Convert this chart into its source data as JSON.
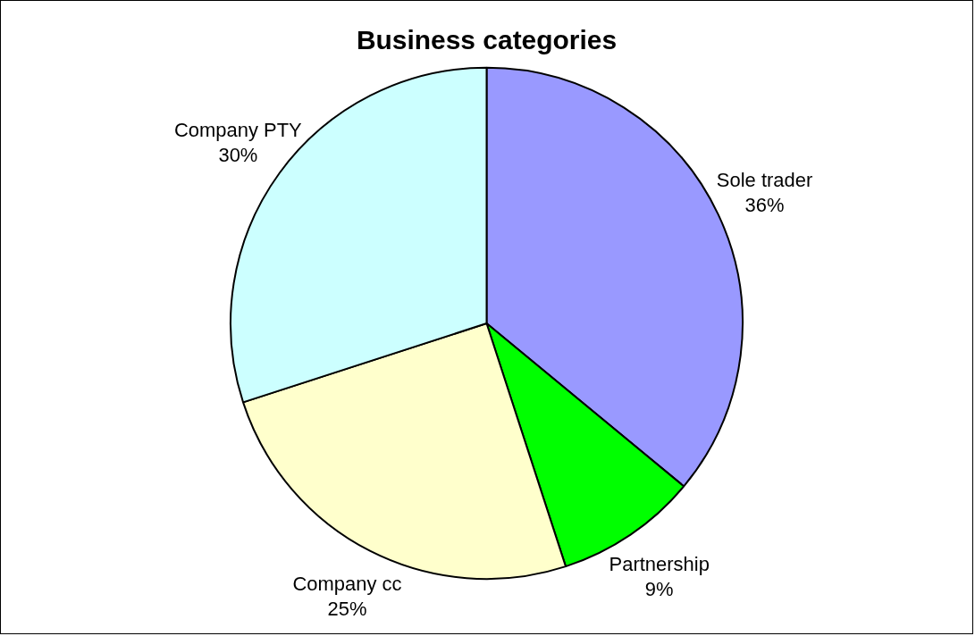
{
  "chart_data": {
    "type": "pie",
    "title": "Business categories",
    "categories": [
      "Sole trader",
      "Partnership",
      "Company cc",
      "Company PTY"
    ],
    "values": [
      36,
      9,
      25,
      30
    ],
    "colors": [
      "#9999ff",
      "#00ff00",
      "#ffffcc",
      "#ccffff"
    ],
    "value_labels": [
      "36%",
      "9%",
      "25%",
      "30%"
    ],
    "legend": false
  }
}
